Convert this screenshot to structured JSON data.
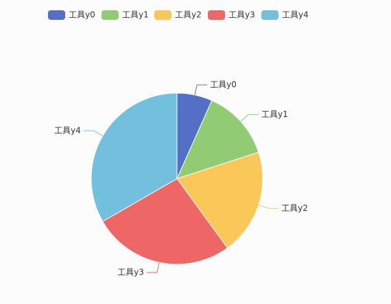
{
  "chart_data": {
    "type": "pie",
    "categories": [
      "工具y0",
      "工具y1",
      "工具y2",
      "工具y3",
      "工具y4"
    ],
    "values": [
      1,
      2,
      3,
      4,
      5
    ],
    "colors": [
      "#5470c6",
      "#91cc75",
      "#fac858",
      "#ee6666",
      "#73c0de"
    ],
    "legend": "top"
  }
}
